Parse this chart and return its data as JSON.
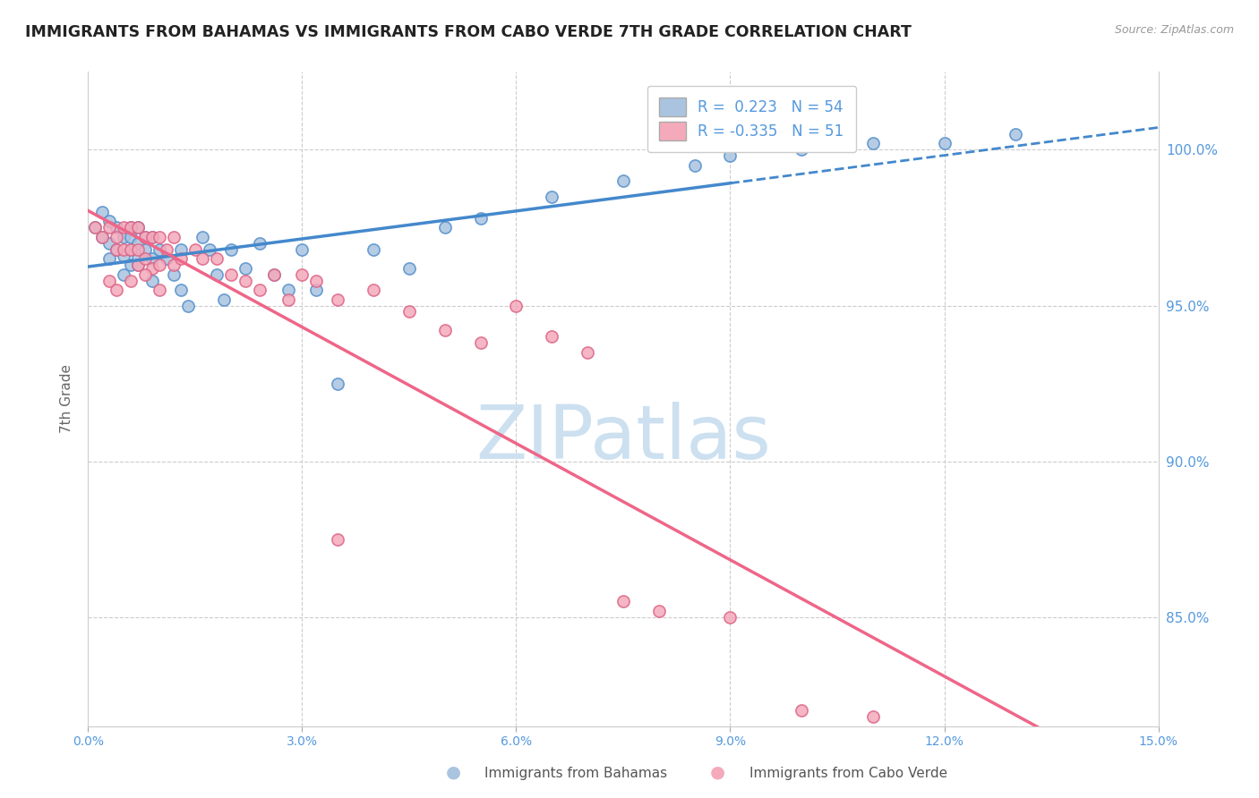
{
  "title": "IMMIGRANTS FROM BAHAMAS VS IMMIGRANTS FROM CABO VERDE 7TH GRADE CORRELATION CHART",
  "source": "Source: ZipAtlas.com",
  "ylabel": "7th Grade",
  "ytick_labels": [
    "100.0%",
    "95.0%",
    "90.0%",
    "85.0%"
  ],
  "ytick_values": [
    1.0,
    0.95,
    0.9,
    0.85
  ],
  "xmin": 0.0,
  "xmax": 0.15,
  "ymin": 0.815,
  "ymax": 1.025,
  "r_bahamas": 0.223,
  "n_bahamas": 54,
  "r_caboverde": -0.335,
  "n_caboverde": 51,
  "color_bahamas": "#aac4e0",
  "color_caboverde": "#f4aabb",
  "edge_bahamas": "#5590cc",
  "edge_caboverde": "#dd6688",
  "line_color_bahamas": "#4488cc",
  "line_color_caboverde": "#ee6688",
  "watermark": "ZIPatlas",
  "watermark_color": "#cce0f0",
  "legend_blue": "R =  0.223   N = 54",
  "legend_pink": "R = -0.335   N = 51",
  "tick_color": "#5599dd",
  "bahamas_x": [
    0.001,
    0.002,
    0.003,
    0.003,
    0.004,
    0.004,
    0.005,
    0.005,
    0.005,
    0.006,
    0.006,
    0.006,
    0.006,
    0.007,
    0.007,
    0.007,
    0.008,
    0.008,
    0.009,
    0.009,
    0.01,
    0.011,
    0.012,
    0.013,
    0.013,
    0.014,
    0.016,
    0.017,
    0.018,
    0.019,
    0.02,
    0.022,
    0.024,
    0.026,
    0.028,
    0.03,
    0.032,
    0.035,
    0.04,
    0.045,
    0.05,
    0.055,
    0.065,
    0.075,
    0.085,
    0.09,
    0.1,
    0.11,
    0.12,
    0.13,
    0.002,
    0.003,
    0.007,
    0.009
  ],
  "bahamas_y": [
    0.975,
    0.972,
    0.97,
    0.965,
    0.975,
    0.968,
    0.972,
    0.966,
    0.96,
    0.975,
    0.972,
    0.968,
    0.963,
    0.975,
    0.97,
    0.965,
    0.972,
    0.968,
    0.972,
    0.965,
    0.968,
    0.965,
    0.96,
    0.968,
    0.955,
    0.95,
    0.972,
    0.968,
    0.96,
    0.952,
    0.968,
    0.962,
    0.97,
    0.96,
    0.955,
    0.968,
    0.955,
    0.925,
    0.968,
    0.962,
    0.975,
    0.978,
    0.985,
    0.99,
    0.995,
    0.998,
    1.0,
    1.002,
    1.002,
    1.005,
    0.98,
    0.977,
    0.963,
    0.958
  ],
  "caboverde_x": [
    0.001,
    0.002,
    0.003,
    0.004,
    0.004,
    0.005,
    0.005,
    0.006,
    0.006,
    0.007,
    0.007,
    0.007,
    0.008,
    0.008,
    0.009,
    0.009,
    0.01,
    0.01,
    0.011,
    0.012,
    0.012,
    0.013,
    0.015,
    0.016,
    0.018,
    0.02,
    0.022,
    0.024,
    0.026,
    0.028,
    0.03,
    0.032,
    0.035,
    0.04,
    0.045,
    0.05,
    0.055,
    0.06,
    0.065,
    0.07,
    0.075,
    0.08,
    0.09,
    0.1,
    0.11,
    0.003,
    0.004,
    0.006,
    0.008,
    0.01,
    0.035
  ],
  "caboverde_y": [
    0.975,
    0.972,
    0.975,
    0.972,
    0.968,
    0.975,
    0.968,
    0.975,
    0.968,
    0.975,
    0.968,
    0.963,
    0.972,
    0.965,
    0.972,
    0.962,
    0.972,
    0.963,
    0.968,
    0.972,
    0.963,
    0.965,
    0.968,
    0.965,
    0.965,
    0.96,
    0.958,
    0.955,
    0.96,
    0.952,
    0.96,
    0.958,
    0.952,
    0.955,
    0.948,
    0.942,
    0.938,
    0.95,
    0.94,
    0.935,
    0.855,
    0.852,
    0.85,
    0.82,
    0.818,
    0.958,
    0.955,
    0.958,
    0.96,
    0.955,
    0.875
  ]
}
